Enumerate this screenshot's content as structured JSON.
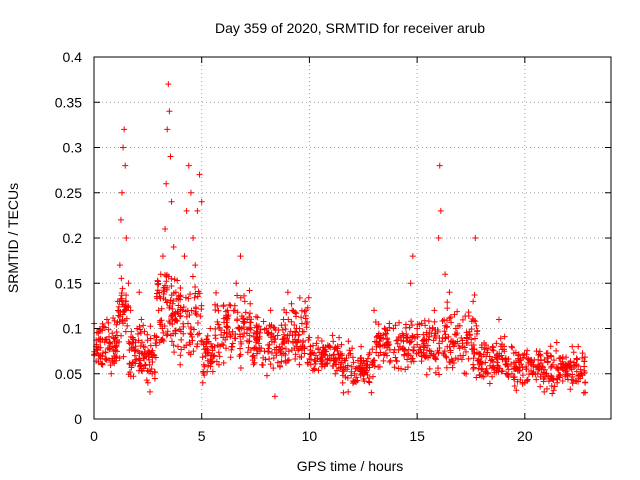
{
  "chart_data": {
    "type": "scatter",
    "title": "Day 359 of 2020, SRMTID for receiver arub",
    "xlabel": "GPS time / hours",
    "ylabel": "SRMTID / TECUs",
    "xlim": [
      0,
      24
    ],
    "ylim": [
      0,
      0.4
    ],
    "xticks": [
      0,
      5,
      10,
      15,
      20
    ],
    "xtick_labels": [
      "0",
      "5",
      "10",
      "15",
      "20"
    ],
    "yticks": [
      0,
      0.05,
      0.1,
      0.15,
      0.2,
      0.25,
      0.3,
      0.35,
      0.4
    ],
    "ytick_labels": [
      "0",
      "0.05",
      "0.1",
      "0.15",
      "0.2",
      "0.25",
      "0.3",
      "0.35",
      "0.4"
    ],
    "grid": true,
    "marker": "+",
    "color": "#ff0000",
    "series": [
      {
        "name": "SRMTID",
        "points": [
          [
            0.1,
            0.08
          ],
          [
            0.2,
            0.095
          ],
          [
            0.3,
            0.07
          ],
          [
            0.4,
            0.06
          ],
          [
            0.5,
            0.085
          ],
          [
            0.6,
            0.11
          ],
          [
            0.7,
            0.065
          ],
          [
            0.8,
            0.05
          ],
          [
            0.9,
            0.075
          ],
          [
            1.0,
            0.09
          ],
          [
            1.1,
            0.13
          ],
          [
            1.2,
            0.17
          ],
          [
            1.25,
            0.22
          ],
          [
            1.3,
            0.25
          ],
          [
            1.35,
            0.3
          ],
          [
            1.4,
            0.32
          ],
          [
            1.45,
            0.28
          ],
          [
            1.5,
            0.2
          ],
          [
            1.6,
            0.15
          ],
          [
            1.7,
            0.12
          ],
          [
            1.8,
            0.09
          ],
          [
            1.9,
            0.07
          ],
          [
            2.0,
            0.1
          ],
          [
            2.1,
            0.14
          ],
          [
            2.2,
            0.11
          ],
          [
            2.3,
            0.08
          ],
          [
            2.4,
            0.06
          ],
          [
            2.5,
            0.04
          ],
          [
            2.6,
            0.03
          ],
          [
            2.7,
            0.05
          ],
          [
            2.8,
            0.07
          ],
          [
            2.9,
            0.09
          ],
          [
            3.0,
            0.12
          ],
          [
            3.1,
            0.16
          ],
          [
            3.2,
            0.18
          ],
          [
            3.3,
            0.21
          ],
          [
            3.35,
            0.26
          ],
          [
            3.4,
            0.32
          ],
          [
            3.45,
            0.37
          ],
          [
            3.5,
            0.34
          ],
          [
            3.55,
            0.29
          ],
          [
            3.6,
            0.24
          ],
          [
            3.7,
            0.19
          ],
          [
            3.8,
            0.14
          ],
          [
            3.9,
            0.08
          ],
          [
            4.0,
            0.06
          ],
          [
            4.1,
            0.12
          ],
          [
            4.2,
            0.18
          ],
          [
            4.3,
            0.23
          ],
          [
            4.4,
            0.28
          ],
          [
            4.5,
            0.25
          ],
          [
            4.6,
            0.2
          ],
          [
            4.7,
            0.17
          ],
          [
            4.8,
            0.23
          ],
          [
            4.9,
            0.27
          ],
          [
            5.0,
            0.24
          ],
          [
            5.05,
            0.04
          ],
          [
            5.1,
            0.06
          ],
          [
            5.2,
            0.08
          ],
          [
            5.4,
            0.1
          ],
          [
            5.6,
            0.07
          ],
          [
            5.8,
            0.06
          ],
          [
            6.0,
            0.09
          ],
          [
            6.2,
            0.12
          ],
          [
            6.4,
            0.08
          ],
          [
            6.6,
            0.15
          ],
          [
            6.8,
            0.18
          ],
          [
            7.0,
            0.13
          ],
          [
            7.2,
            0.1
          ],
          [
            7.4,
            0.07
          ],
          [
            7.6,
            0.09
          ],
          [
            7.8,
            0.06
          ],
          [
            8.0,
            0.1
          ],
          [
            8.2,
            0.12
          ],
          [
            8.4,
            0.025
          ],
          [
            8.6,
            0.08
          ],
          [
            8.8,
            0.11
          ],
          [
            9.0,
            0.14
          ],
          [
            9.2,
            0.12
          ],
          [
            9.4,
            0.1
          ],
          [
            9.6,
            0.08
          ],
          [
            9.8,
            0.13
          ],
          [
            10.0,
            0.09
          ],
          [
            10.3,
            0.07
          ],
          [
            10.6,
            0.06
          ],
          [
            10.9,
            0.08
          ],
          [
            11.2,
            0.05
          ],
          [
            11.5,
            0.07
          ],
          [
            11.8,
            0.03
          ],
          [
            12.1,
            0.05
          ],
          [
            12.4,
            0.08
          ],
          [
            12.7,
            0.06
          ],
          [
            13.0,
            0.12
          ],
          [
            13.3,
            0.09
          ],
          [
            13.6,
            0.07
          ],
          [
            13.9,
            0.1
          ],
          [
            14.2,
            0.08
          ],
          [
            14.5,
            0.09
          ],
          [
            14.7,
            0.15
          ],
          [
            14.8,
            0.18
          ],
          [
            15.0,
            0.1
          ],
          [
            15.3,
            0.08
          ],
          [
            15.6,
            0.07
          ],
          [
            15.8,
            0.12
          ],
          [
            16.0,
            0.2
          ],
          [
            16.05,
            0.28
          ],
          [
            16.1,
            0.23
          ],
          [
            16.3,
            0.16
          ],
          [
            16.5,
            0.14
          ],
          [
            16.8,
            0.1
          ],
          [
            17.0,
            0.07
          ],
          [
            17.3,
            0.09
          ],
          [
            17.6,
            0.13
          ],
          [
            17.7,
            0.2
          ],
          [
            17.9,
            0.06
          ],
          [
            18.2,
            0.05
          ],
          [
            18.5,
            0.08
          ],
          [
            18.8,
            0.11
          ],
          [
            19.1,
            0.06
          ],
          [
            19.4,
            0.05
          ],
          [
            19.7,
            0.07
          ],
          [
            20.0,
            0.04
          ],
          [
            20.3,
            0.06
          ],
          [
            20.6,
            0.05
          ],
          [
            20.9,
            0.03
          ],
          [
            21.2,
            0.07
          ],
          [
            21.5,
            0.04
          ],
          [
            21.8,
            0.06
          ],
          [
            22.0,
            0.05
          ],
          [
            22.2,
            0.08
          ],
          [
            22.4,
            0.06
          ],
          [
            22.6,
            0.05
          ],
          [
            22.8,
            0.04
          ]
        ]
      }
    ],
    "bands": [
      {
        "x0": 0.0,
        "x1": 1.1,
        "lo": 0.04,
        "hi": 0.12,
        "n": 85
      },
      {
        "x0": 1.1,
        "x1": 1.6,
        "lo": 0.05,
        "hi": 0.18,
        "n": 40
      },
      {
        "x0": 1.6,
        "x1": 2.9,
        "lo": 0.025,
        "hi": 0.12,
        "n": 95
      },
      {
        "x0": 2.9,
        "x1": 3.6,
        "lo": 0.06,
        "hi": 0.2,
        "n": 55
      },
      {
        "x0": 3.6,
        "x1": 5.0,
        "lo": 0.05,
        "hi": 0.18,
        "n": 95
      },
      {
        "x0": 5.0,
        "x1": 5.6,
        "lo": 0.035,
        "hi": 0.11,
        "n": 40
      },
      {
        "x0": 5.6,
        "x1": 7.3,
        "lo": 0.05,
        "hi": 0.15,
        "n": 110
      },
      {
        "x0": 7.3,
        "x1": 9.0,
        "lo": 0.04,
        "hi": 0.13,
        "n": 110
      },
      {
        "x0": 9.0,
        "x1": 10.0,
        "lo": 0.05,
        "hi": 0.14,
        "n": 65
      },
      {
        "x0": 10.0,
        "x1": 11.5,
        "lo": 0.04,
        "hi": 0.1,
        "n": 90
      },
      {
        "x0": 11.5,
        "x1": 13.0,
        "lo": 0.025,
        "hi": 0.09,
        "n": 90
      },
      {
        "x0": 13.0,
        "x1": 15.5,
        "lo": 0.04,
        "hi": 0.12,
        "n": 150
      },
      {
        "x0": 15.5,
        "x1": 17.8,
        "lo": 0.03,
        "hi": 0.14,
        "n": 140
      },
      {
        "x0": 17.8,
        "x1": 19.5,
        "lo": 0.025,
        "hi": 0.1,
        "n": 100
      },
      {
        "x0": 19.5,
        "x1": 21.5,
        "lo": 0.02,
        "hi": 0.09,
        "n": 120
      },
      {
        "x0": 21.5,
        "x1": 22.8,
        "lo": 0.02,
        "hi": 0.09,
        "n": 80
      }
    ]
  }
}
